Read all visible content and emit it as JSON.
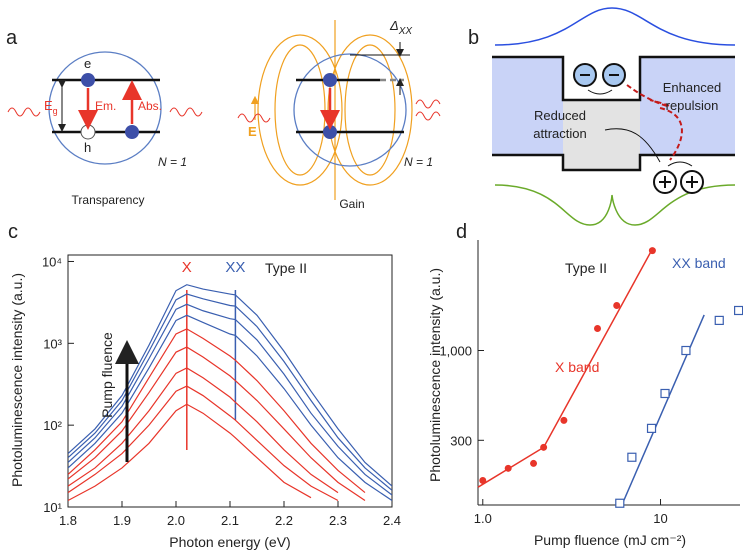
{
  "diagrams": {
    "a": {
      "label": "a",
      "left": {
        "e": "e",
        "h": "h",
        "energy": "E",
        "energy_sub": "g",
        "emission": "Em.",
        "absorption": "Abs.",
        "n": "N = 1",
        "caption": "Transparency"
      },
      "right": {
        "field": "E",
        "shift": "Δ",
        "shift_sub": "XX",
        "n": "N = 1",
        "caption": "Gain"
      }
    },
    "b": {
      "label": "b",
      "attraction": [
        "Reduced",
        "attraction"
      ],
      "repulsion": [
        "Enhanced",
        "repulsion"
      ]
    }
  },
  "chart_data": [
    {
      "panel_label": "c",
      "type": "line",
      "log_y": true,
      "xlabel": "Photon energy (eV)",
      "ylabel": "Photoluminescence intensity (a.u.)",
      "x": [
        1.8,
        1.85,
        1.9,
        1.95,
        2.0,
        2.02,
        2.05,
        2.1,
        2.11,
        2.15,
        2.2,
        2.25,
        2.3,
        2.35,
        2.4
      ],
      "xlim": [
        1.8,
        2.4
      ],
      "ylim": [
        10,
        12000
      ],
      "xticks": [
        1.8,
        1.9,
        {
          "value": 2,
          "label": "2.0"
        },
        2.1,
        2.2,
        2.3,
        2.4
      ],
      "yticks": [
        {
          "value": 10,
          "label": "10¹"
        },
        {
          "value": 100,
          "label": "10²"
        },
        {
          "value": 1000,
          "label": "10³"
        },
        {
          "value": 10000,
          "label": "10⁴"
        }
      ],
      "series": [
        {
          "color": "#e8352a",
          "values": [
            12,
            18,
            30,
            60,
            150,
            180,
            140,
            80,
            70,
            40,
            20,
            13,
            null,
            null,
            null
          ]
        },
        {
          "color": "#e8352a",
          "values": [
            15,
            25,
            45,
            100,
            260,
            300,
            230,
            130,
            115,
            65,
            32,
            18,
            12,
            null,
            null
          ]
        },
        {
          "color": "#e8352a",
          "values": [
            18,
            30,
            60,
            150,
            430,
            500,
            380,
            220,
            190,
            110,
            50,
            25,
            15,
            null,
            null
          ]
        },
        {
          "color": "#e8352a",
          "values": [
            22,
            40,
            85,
            250,
            780,
            900,
            680,
            400,
            350,
            200,
            90,
            40,
            20,
            12,
            null
          ]
        },
        {
          "color": "#e8352a",
          "values": [
            25,
            50,
            110,
            380,
            1300,
            1500,
            1150,
            700,
            620,
            350,
            150,
            60,
            28,
            15,
            null
          ]
        },
        {
          "color": "#3a5fb0",
          "values": [
            30,
            60,
            140,
            500,
            1900,
            2200,
            1800,
            1300,
            1250,
            700,
            280,
            100,
            40,
            20,
            12
          ]
        },
        {
          "color": "#3a5fb0",
          "values": [
            35,
            70,
            170,
            650,
            2600,
            3000,
            2500,
            2000,
            1950,
            1100,
            420,
            140,
            55,
            25,
            14
          ]
        },
        {
          "color": "#3a5fb0",
          "values": [
            40,
            80,
            200,
            800,
            3400,
            4000,
            3500,
            2900,
            2850,
            1600,
            600,
            200,
            70,
            30,
            16
          ]
        },
        {
          "color": "#3a5fb0",
          "values": [
            45,
            90,
            230,
            950,
            4400,
            5200,
            4600,
            4000,
            3900,
            2200,
            800,
            260,
            90,
            35,
            18
          ]
        }
      ],
      "markers": [
        {
          "label": "X",
          "x": 2.02,
          "color": "#e8352a"
        },
        {
          "label": "XX",
          "x": 2.11,
          "color": "#3a5fb0"
        }
      ],
      "annotations": [
        "Type II",
        "Pump fluence"
      ]
    },
    {
      "panel_label": "d",
      "type": "scatter",
      "log_x": true,
      "log_y": true,
      "xlabel": "Pump fluence (mJ cm⁻²)",
      "ylabel": "Photoluminescence intensity (a.u.)",
      "xlim": [
        0.94,
        28
      ],
      "ylim": [
        126,
        4400
      ],
      "xticks": [
        {
          "value": 1,
          "label": "1.0"
        },
        10
      ],
      "yticks": [
        300,
        {
          "value": 1000,
          "label": "1,000"
        }
      ],
      "series": [
        {
          "name": "X band",
          "color": "#e8352a",
          "marker": "circle",
          "x": [
            1.0,
            1.39,
            1.93,
            2.2,
            2.86,
            4.42,
            5.67,
            9.0
          ],
          "values": [
            175,
            206,
            220,
            273,
            392,
            1343,
            1829,
            3817
          ]
        },
        {
          "name": "XX band",
          "color": "#3a5fb0",
          "marker": "square",
          "x": [
            5.9,
            6.9,
            8.9,
            10.6,
            13.9,
            21.4,
            27.5
          ],
          "values": [
            129,
            239,
            352,
            562,
            1000,
            1497,
            1710
          ]
        }
      ],
      "fit_lines": [
        {
          "color": "#e8352a",
          "x": [
            0.94,
            2.2,
            9.0
          ],
          "y": [
            160,
            273,
            3900
          ]
        },
        {
          "color": "#3a5fb0",
          "x": [
            6.06,
            17.6
          ],
          "y": [
            126,
            1610
          ]
        }
      ],
      "annotations": [
        "Type II"
      ]
    }
  ]
}
